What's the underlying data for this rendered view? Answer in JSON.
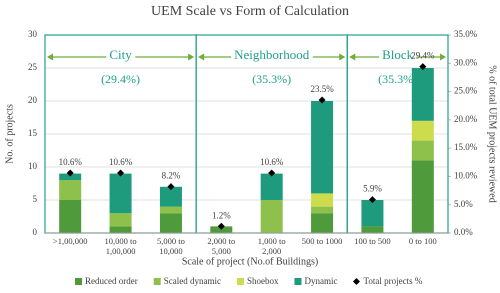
{
  "chart_data": {
    "type": "stacked-bar",
    "title": "UEM Scale vs Form of Calculation",
    "x_label": "Scale of project (No.of Buildings)",
    "y_label": "No. of projects",
    "y2_label": "% of total UEM projects reviewed",
    "categories": [
      ">1,00,000",
      "10,000 to 1,00,000",
      "5,000 to 10,000",
      "2,000 to 5,000",
      "1,000 to 2,000",
      "500 to 1000",
      "100 to 500",
      "0 to 100"
    ],
    "series": [
      {
        "name": "Reduced order",
        "color": "#4f9a3b",
        "values": [
          5,
          1,
          3,
          1,
          0,
          3,
          1,
          11
        ]
      },
      {
        "name": "Scaled dynamic",
        "color": "#8dc14b",
        "values": [
          3,
          2,
          1,
          0,
          5,
          1,
          0,
          3
        ]
      },
      {
        "name": "Shoebox",
        "color": "#cddc4c",
        "values": [
          0,
          0,
          0,
          0,
          0,
          2,
          0,
          3
        ]
      },
      {
        "name": "Dynamic",
        "color": "#1e9a7c",
        "values": [
          1,
          6,
          3,
          0,
          4,
          14,
          4,
          8
        ]
      },
      {
        "name": "Total projects %",
        "color": "#000000",
        "axis": "y2",
        "marker": "diamond",
        "values": [
          10.6,
          10.6,
          8.2,
          1.2,
          10.6,
          23.5,
          5.9,
          29.4
        ],
        "value_labels": [
          "10.6%",
          "10.6%",
          "8.2%",
          "1.2%",
          "10.6%",
          "23.5%",
          "5.9%",
          "29.4%"
        ]
      }
    ],
    "groups": [
      {
        "name": "City",
        "label": "(29.4%)"
      },
      {
        "name": "Neighborhood",
        "label": "(35.3%)"
      },
      {
        "name": "Block",
        "label": "(35.3%)"
      }
    ],
    "group_color": "#22a08a",
    "ylim": [
      0,
      30
    ],
    "yticks": [
      0,
      5,
      10,
      15,
      20,
      25,
      30
    ],
    "y2lim": [
      0,
      35
    ],
    "y2ticks": [
      {
        "value": 0,
        "label": "0.0%"
      },
      {
        "value": 5,
        "label": "5.0%"
      },
      {
        "value": 10,
        "label": "10.0%"
      },
      {
        "value": 15,
        "label": "15.0%"
      },
      {
        "value": 20,
        "label": "20.0%"
      },
      {
        "value": 25,
        "label": "25.0%"
      },
      {
        "value": 30,
        "label": "30.0%"
      },
      {
        "value": 35,
        "label": "35.0%"
      }
    ],
    "grid": true
  }
}
